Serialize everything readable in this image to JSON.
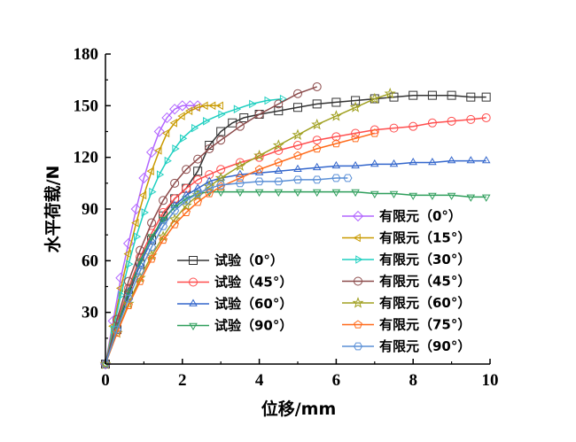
{
  "chart_data": {
    "type": "line",
    "xlabel": "位移/mm",
    "ylabel": "水平荷载/N",
    "xlim": [
      0,
      10
    ],
    "ylim": [
      0,
      180
    ],
    "xticks": [
      "0",
      "2",
      "4",
      "6",
      "8",
      "10"
    ],
    "yticks": [
      "30",
      "60",
      "90",
      "120",
      "150",
      "180"
    ],
    "grid": false,
    "legend_placement": "bottom-right, two columns",
    "series": [
      {
        "name": "试验（0°）",
        "color": "#333333",
        "marker": "square",
        "x": [
          0,
          0.3,
          0.6,
          0.9,
          1.2,
          1.5,
          1.8,
          2.1,
          2.4,
          2.7,
          3.0,
          3.3,
          3.6,
          4.0,
          4.5,
          5.0,
          5.5,
          6.0,
          6.5,
          7.0,
          7.5,
          8.0,
          8.5,
          9.0,
          9.5,
          9.9
        ],
        "y": [
          0,
          20,
          40,
          58,
          72,
          86,
          96,
          102,
          112,
          127,
          135,
          140,
          143,
          145,
          147,
          149,
          151,
          152,
          153,
          154,
          155,
          156,
          156,
          156,
          155,
          155
        ]
      },
      {
        "name": "试验（45°）",
        "color": "#ff4d4d",
        "marker": "circle",
        "x": [
          0,
          0.3,
          0.6,
          0.9,
          1.2,
          1.5,
          1.8,
          2.1,
          2.4,
          2.7,
          3.0,
          3.5,
          4.0,
          4.5,
          5.0,
          5.5,
          6.0,
          6.5,
          7.0,
          7.5,
          8.0,
          8.5,
          9.0,
          9.5,
          9.9
        ],
        "y": [
          0,
          24,
          44,
          62,
          76,
          88,
          96,
          102,
          107,
          110,
          113,
          117,
          120,
          124,
          127,
          130,
          132,
          134,
          136,
          137,
          138,
          140,
          141,
          142,
          143
        ]
      },
      {
        "name": "试验（60°）",
        "color": "#3366cc",
        "marker": "triangle-up",
        "x": [
          0,
          0.3,
          0.6,
          0.9,
          1.2,
          1.5,
          1.8,
          2.1,
          2.4,
          2.7,
          3.0,
          3.5,
          4.0,
          4.5,
          5.0,
          5.5,
          6.0,
          6.5,
          7.0,
          7.5,
          8.0,
          8.5,
          9.0,
          9.5,
          9.9
        ],
        "y": [
          0,
          22,
          42,
          58,
          72,
          83,
          92,
          98,
          102,
          106,
          108,
          110,
          111,
          112,
          113,
          114,
          115,
          115,
          116,
          116,
          117,
          117,
          118,
          118,
          118
        ]
      },
      {
        "name": "试验（90°）",
        "color": "#2e9e5b",
        "marker": "triangle-down",
        "x": [
          0,
          0.3,
          0.6,
          0.9,
          1.2,
          1.5,
          1.8,
          2.1,
          2.4,
          2.7,
          3.0,
          3.5,
          4.0,
          4.5,
          5.0,
          5.5,
          6.0,
          6.5,
          7.0,
          7.5,
          8.0,
          8.5,
          9.0,
          9.5,
          9.9
        ],
        "y": [
          0,
          22,
          42,
          60,
          74,
          84,
          91,
          96,
          99,
          100,
          100,
          100,
          100,
          100,
          100,
          100,
          100,
          100,
          99,
          99,
          98,
          98,
          98,
          97,
          97
        ]
      },
      {
        "name": "有限元（0°）",
        "color": "#b266ff",
        "marker": "diamond",
        "x": [
          0,
          0.2,
          0.4,
          0.6,
          0.8,
          1.0,
          1.2,
          1.4,
          1.6,
          1.8,
          2.0,
          2.2,
          2.4
        ],
        "y": [
          0,
          25,
          50,
          70,
          90,
          108,
          123,
          135,
          143,
          148,
          150,
          150,
          150
        ]
      },
      {
        "name": "有限元（15°）",
        "color": "#c99a00",
        "marker": "triangle-left",
        "x": [
          0,
          0.2,
          0.4,
          0.6,
          0.8,
          1.0,
          1.2,
          1.4,
          1.6,
          1.8,
          2.0,
          2.2,
          2.4,
          2.6,
          2.8,
          3.0
        ],
        "y": [
          0,
          22,
          44,
          64,
          82,
          98,
          112,
          124,
          134,
          140,
          144,
          147,
          149,
          150,
          150,
          150
        ]
      },
      {
        "name": "有限元（30°）",
        "color": "#1ecfc0",
        "marker": "triangle-right",
        "x": [
          0,
          0.2,
          0.4,
          0.6,
          0.8,
          1.0,
          1.2,
          1.4,
          1.6,
          1.8,
          2.0,
          2.3,
          2.6,
          3.0,
          3.4,
          3.8,
          4.2,
          4.6
        ],
        "y": [
          0,
          20,
          40,
          58,
          74,
          88,
          100,
          110,
          118,
          125,
          131,
          137,
          141,
          145,
          148,
          151,
          153,
          154
        ]
      },
      {
        "name": "有限元（45°）",
        "color": "#8b4a4a",
        "marker": "circle",
        "x": [
          0,
          0.3,
          0.6,
          0.9,
          1.2,
          1.5,
          1.8,
          2.1,
          2.4,
          2.7,
          3.0,
          3.5,
          4.0,
          4.5,
          5.0,
          5.5
        ],
        "y": [
          0,
          26,
          48,
          66,
          82,
          95,
          105,
          113,
          119,
          125,
          130,
          138,
          145,
          151,
          157,
          161
        ]
      },
      {
        "name": "有限元（60°）",
        "color": "#a0a020",
        "marker": "star",
        "x": [
          0,
          0.3,
          0.6,
          0.9,
          1.2,
          1.5,
          1.8,
          2.1,
          2.4,
          2.7,
          3.0,
          3.5,
          4.0,
          4.5,
          5.0,
          5.5,
          6.0,
          6.5,
          7.0,
          7.4
        ],
        "y": [
          0,
          18,
          35,
          50,
          63,
          74,
          84,
          92,
          98,
          103,
          108,
          115,
          121,
          127,
          133,
          139,
          144,
          149,
          154,
          157
        ]
      },
      {
        "name": "有限元（75°）",
        "color": "#ff6a1a",
        "marker": "pentagon",
        "x": [
          0,
          0.3,
          0.6,
          0.9,
          1.2,
          1.5,
          1.8,
          2.1,
          2.4,
          2.7,
          3.0,
          3.5,
          4.0,
          4.5,
          5.0,
          5.5,
          6.0,
          6.5,
          7.0
        ],
        "y": [
          0,
          18,
          34,
          48,
          61,
          72,
          81,
          88,
          94,
          99,
          103,
          108,
          113,
          117,
          121,
          125,
          128,
          131,
          134
        ]
      },
      {
        "name": "有限元（90°）",
        "color": "#5a8fd6",
        "marker": "hexagon",
        "x": [
          0,
          0.3,
          0.6,
          0.9,
          1.2,
          1.5,
          1.8,
          2.1,
          2.4,
          2.7,
          3.0,
          3.5,
          4.0,
          4.5,
          5.0,
          5.5,
          6.0,
          6.3
        ],
        "y": [
          0,
          20,
          38,
          54,
          68,
          80,
          89,
          95,
          99,
          102,
          104,
          105,
          106,
          106,
          107,
          107,
          108,
          108
        ]
      }
    ]
  }
}
